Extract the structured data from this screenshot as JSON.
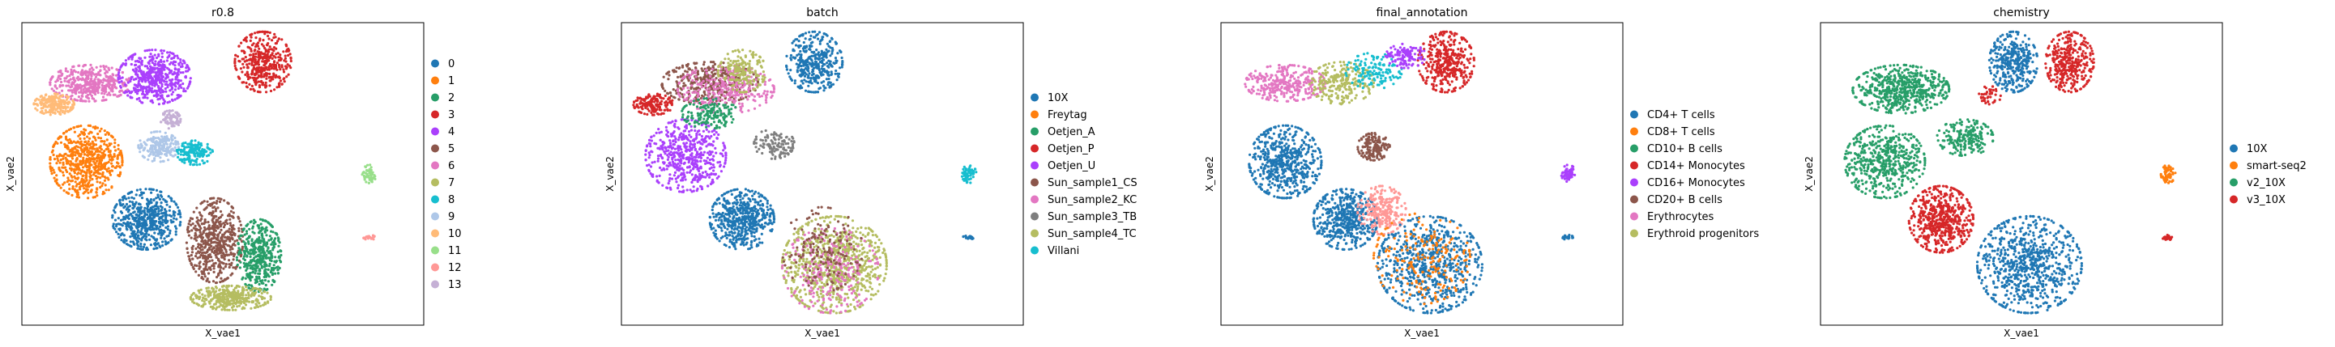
{
  "chart_data": [
    {
      "type": "scatter",
      "title": "r0.8",
      "xlabel": "X_vae1",
      "ylabel": "X_vae2",
      "legend_position": "right",
      "series": [
        {
          "name": "0",
          "color": "#1f77b4"
        },
        {
          "name": "1",
          "color": "#ff7f0e"
        },
        {
          "name": "2",
          "color": "#279e68"
        },
        {
          "name": "3",
          "color": "#d62728"
        },
        {
          "name": "4",
          "color": "#aa40fc"
        },
        {
          "name": "5",
          "color": "#8c564b"
        },
        {
          "name": "6",
          "color": "#e377c2"
        },
        {
          "name": "7",
          "color": "#b5bd61"
        },
        {
          "name": "8",
          "color": "#17becf"
        },
        {
          "name": "9",
          "color": "#aec7e8"
        },
        {
          "name": "10",
          "color": "#ffbb78"
        },
        {
          "name": "11",
          "color": "#98df8a"
        },
        {
          "name": "12",
          "color": "#ff9896"
        },
        {
          "name": "13",
          "color": "#c5b0d5"
        }
      ],
      "clusters": [
        {
          "cx": 0.17,
          "cy": 0.2,
          "rx": 0.1,
          "ry": 0.06,
          "color": "#e377c2",
          "n": 420
        },
        {
          "cx": 0.33,
          "cy": 0.18,
          "rx": 0.09,
          "ry": 0.09,
          "color": "#aa40fc",
          "n": 520
        },
        {
          "cx": 0.6,
          "cy": 0.13,
          "rx": 0.07,
          "ry": 0.1,
          "color": "#d62728",
          "n": 400
        },
        {
          "cx": 0.08,
          "cy": 0.27,
          "rx": 0.05,
          "ry": 0.035,
          "color": "#ffbb78",
          "n": 200
        },
        {
          "cx": 0.16,
          "cy": 0.46,
          "rx": 0.09,
          "ry": 0.12,
          "color": "#ff7f0e",
          "n": 620
        },
        {
          "cx": 0.34,
          "cy": 0.41,
          "rx": 0.05,
          "ry": 0.05,
          "color": "#aec7e8",
          "n": 200
        },
        {
          "cx": 0.43,
          "cy": 0.43,
          "rx": 0.045,
          "ry": 0.04,
          "color": "#17becf",
          "n": 170
        },
        {
          "cx": 0.37,
          "cy": 0.32,
          "rx": 0.025,
          "ry": 0.03,
          "color": "#c5b0d5",
          "n": 80
        },
        {
          "cx": 0.31,
          "cy": 0.65,
          "rx": 0.085,
          "ry": 0.1,
          "color": "#1f77b4",
          "n": 560
        },
        {
          "cx": 0.48,
          "cy": 0.72,
          "rx": 0.07,
          "ry": 0.14,
          "color": "#8c564b",
          "n": 560
        },
        {
          "cx": 0.59,
          "cy": 0.77,
          "rx": 0.055,
          "ry": 0.12,
          "color": "#279e68",
          "n": 440
        },
        {
          "cx": 0.52,
          "cy": 0.91,
          "rx": 0.1,
          "ry": 0.04,
          "color": "#b5bd61",
          "n": 360
        },
        {
          "cx": 0.865,
          "cy": 0.5,
          "rx": 0.018,
          "ry": 0.03,
          "color": "#98df8a",
          "n": 60
        },
        {
          "cx": 0.865,
          "cy": 0.71,
          "rx": 0.015,
          "ry": 0.008,
          "color": "#ff9896",
          "n": 20
        }
      ]
    },
    {
      "type": "scatter",
      "title": "batch",
      "xlabel": "X_vae1",
      "ylabel": "X_vae2",
      "legend_position": "right",
      "series": [
        {
          "name": "10X",
          "color": "#1f77b4"
        },
        {
          "name": "Freytag",
          "color": "#ff7f0e"
        },
        {
          "name": "Oetjen_A",
          "color": "#279e68"
        },
        {
          "name": "Oetjen_P",
          "color": "#d62728"
        },
        {
          "name": "Oetjen_U",
          "color": "#aa40fc"
        },
        {
          "name": "Sun_sample1_CS",
          "color": "#8c564b"
        },
        {
          "name": "Sun_sample2_KC",
          "color": "#e377c2"
        },
        {
          "name": "Sun_sample3_TB",
          "color": "#7f7f7f"
        },
        {
          "name": "Sun_sample4_TC",
          "color": "#b5bd61"
        },
        {
          "name": "Villani",
          "color": "#17becf"
        }
      ],
      "clusters": [
        {
          "cx": 0.48,
          "cy": 0.13,
          "rx": 0.07,
          "ry": 0.1,
          "color": "#1f77b4",
          "n": 380
        },
        {
          "cx": 0.22,
          "cy": 0.2,
          "rx": 0.12,
          "ry": 0.07,
          "color": "#8c564b",
          "n": 380
        },
        {
          "cx": 0.26,
          "cy": 0.22,
          "rx": 0.12,
          "ry": 0.08,
          "color": "#e377c2",
          "n": 300
        },
        {
          "cx": 0.3,
          "cy": 0.16,
          "rx": 0.06,
          "ry": 0.07,
          "color": "#b5bd61",
          "n": 180
        },
        {
          "cx": 0.16,
          "cy": 0.44,
          "rx": 0.1,
          "ry": 0.12,
          "color": "#aa40fc",
          "n": 520
        },
        {
          "cx": 0.08,
          "cy": 0.27,
          "rx": 0.05,
          "ry": 0.035,
          "color": "#d62728",
          "n": 160
        },
        {
          "cx": 0.22,
          "cy": 0.3,
          "rx": 0.07,
          "ry": 0.05,
          "color": "#279e68",
          "n": 160
        },
        {
          "cx": 0.38,
          "cy": 0.4,
          "rx": 0.05,
          "ry": 0.05,
          "color": "#7f7f7f",
          "n": 120
        },
        {
          "cx": 0.3,
          "cy": 0.65,
          "rx": 0.08,
          "ry": 0.1,
          "color": "#1f77b4",
          "n": 520
        },
        {
          "cx": 0.53,
          "cy": 0.8,
          "rx": 0.13,
          "ry": 0.16,
          "color": "#b5bd61",
          "n": 780
        },
        {
          "cx": 0.52,
          "cy": 0.82,
          "rx": 0.12,
          "ry": 0.14,
          "color": "#e377c2",
          "n": 240
        },
        {
          "cx": 0.5,
          "cy": 0.75,
          "rx": 0.1,
          "ry": 0.14,
          "color": "#8c564b",
          "n": 160
        },
        {
          "cx": 0.865,
          "cy": 0.5,
          "rx": 0.018,
          "ry": 0.03,
          "color": "#17becf",
          "n": 60
        },
        {
          "cx": 0.865,
          "cy": 0.71,
          "rx": 0.015,
          "ry": 0.008,
          "color": "#1f77b4",
          "n": 20
        }
      ]
    },
    {
      "type": "scatter",
      "title": "final_annotation",
      "xlabel": "X_vae1",
      "ylabel": "X_vae2",
      "legend_position": "right",
      "series": [
        {
          "name": "CD4+ T cells",
          "color": "#1f77b4"
        },
        {
          "name": "CD8+ T cells",
          "color": "#ff7f0e"
        },
        {
          "name": "CD10+ B cells",
          "color": "#279e68"
        },
        {
          "name": "CD14+ Monocytes",
          "color": "#d62728"
        },
        {
          "name": "CD16+ Monocytes",
          "color": "#aa40fc"
        },
        {
          "name": "CD20+ B cells",
          "color": "#8c564b"
        },
        {
          "name": "Erythrocytes",
          "color": "#e377c2"
        },
        {
          "name": "Erythroid progenitors",
          "color": "#b5bd61"
        }
      ],
      "clusters": [
        {
          "cx": 0.16,
          "cy": 0.2,
          "rx": 0.1,
          "ry": 0.06,
          "color": "#e377c2",
          "n": 320
        },
        {
          "cx": 0.3,
          "cy": 0.2,
          "rx": 0.08,
          "ry": 0.07,
          "color": "#b5bd61",
          "n": 240
        },
        {
          "cx": 0.38,
          "cy": 0.16,
          "rx": 0.07,
          "ry": 0.06,
          "color": "#17becf",
          "n": 140
        },
        {
          "cx": 0.56,
          "cy": 0.13,
          "rx": 0.07,
          "ry": 0.1,
          "color": "#d62728",
          "n": 380
        },
        {
          "cx": 0.46,
          "cy": 0.11,
          "rx": 0.05,
          "ry": 0.04,
          "color": "#aa40fc",
          "n": 120
        },
        {
          "cx": 0.16,
          "cy": 0.46,
          "rx": 0.09,
          "ry": 0.12,
          "color": "#1f77b4",
          "n": 560
        },
        {
          "cx": 0.38,
          "cy": 0.41,
          "rx": 0.04,
          "ry": 0.045,
          "color": "#8c564b",
          "n": 160
        },
        {
          "cx": 0.31,
          "cy": 0.65,
          "rx": 0.08,
          "ry": 0.1,
          "color": "#1f77b4",
          "n": 500
        },
        {
          "cx": 0.4,
          "cy": 0.62,
          "rx": 0.06,
          "ry": 0.08,
          "color": "#ff9896",
          "n": 240
        },
        {
          "cx": 0.52,
          "cy": 0.8,
          "rx": 0.13,
          "ry": 0.16,
          "color": "#1f77b4",
          "n": 700
        },
        {
          "cx": 0.5,
          "cy": 0.78,
          "rx": 0.12,
          "ry": 0.15,
          "color": "#ff7f0e",
          "n": 200
        },
        {
          "cx": 0.865,
          "cy": 0.5,
          "rx": 0.018,
          "ry": 0.03,
          "color": "#aa40fc",
          "n": 60
        },
        {
          "cx": 0.865,
          "cy": 0.71,
          "rx": 0.015,
          "ry": 0.008,
          "color": "#1f77b4",
          "n": 20
        }
      ]
    },
    {
      "type": "scatter",
      "title": "chemistry",
      "xlabel": "X_vae1",
      "ylabel": "X_vae2",
      "legend_position": "right",
      "series": [
        {
          "name": "10X",
          "color": "#1f77b4"
        },
        {
          "name": "smart-seq2",
          "color": "#ff7f0e"
        },
        {
          "name": "v2_10X",
          "color": "#279e68"
        },
        {
          "name": "v3_10X",
          "color": "#d62728"
        }
      ],
      "clusters": [
        {
          "cx": 0.2,
          "cy": 0.22,
          "rx": 0.12,
          "ry": 0.08,
          "color": "#279e68",
          "n": 560
        },
        {
          "cx": 0.16,
          "cy": 0.46,
          "rx": 0.1,
          "ry": 0.12,
          "color": "#279e68",
          "n": 520
        },
        {
          "cx": 0.36,
          "cy": 0.38,
          "rx": 0.07,
          "ry": 0.06,
          "color": "#279e68",
          "n": 200
        },
        {
          "cx": 0.48,
          "cy": 0.13,
          "rx": 0.06,
          "ry": 0.1,
          "color": "#1f77b4",
          "n": 360
        },
        {
          "cx": 0.62,
          "cy": 0.13,
          "rx": 0.06,
          "ry": 0.1,
          "color": "#d62728",
          "n": 360
        },
        {
          "cx": 0.42,
          "cy": 0.24,
          "rx": 0.03,
          "ry": 0.03,
          "color": "#d62728",
          "n": 40
        },
        {
          "cx": 0.3,
          "cy": 0.65,
          "rx": 0.08,
          "ry": 0.11,
          "color": "#d62728",
          "n": 560
        },
        {
          "cx": 0.52,
          "cy": 0.8,
          "rx": 0.13,
          "ry": 0.16,
          "color": "#1f77b4",
          "n": 760
        },
        {
          "cx": 0.865,
          "cy": 0.5,
          "rx": 0.018,
          "ry": 0.03,
          "color": "#ff7f0e",
          "n": 60
        },
        {
          "cx": 0.865,
          "cy": 0.71,
          "rx": 0.015,
          "ry": 0.008,
          "color": "#d62728",
          "n": 20
        }
      ]
    }
  ]
}
